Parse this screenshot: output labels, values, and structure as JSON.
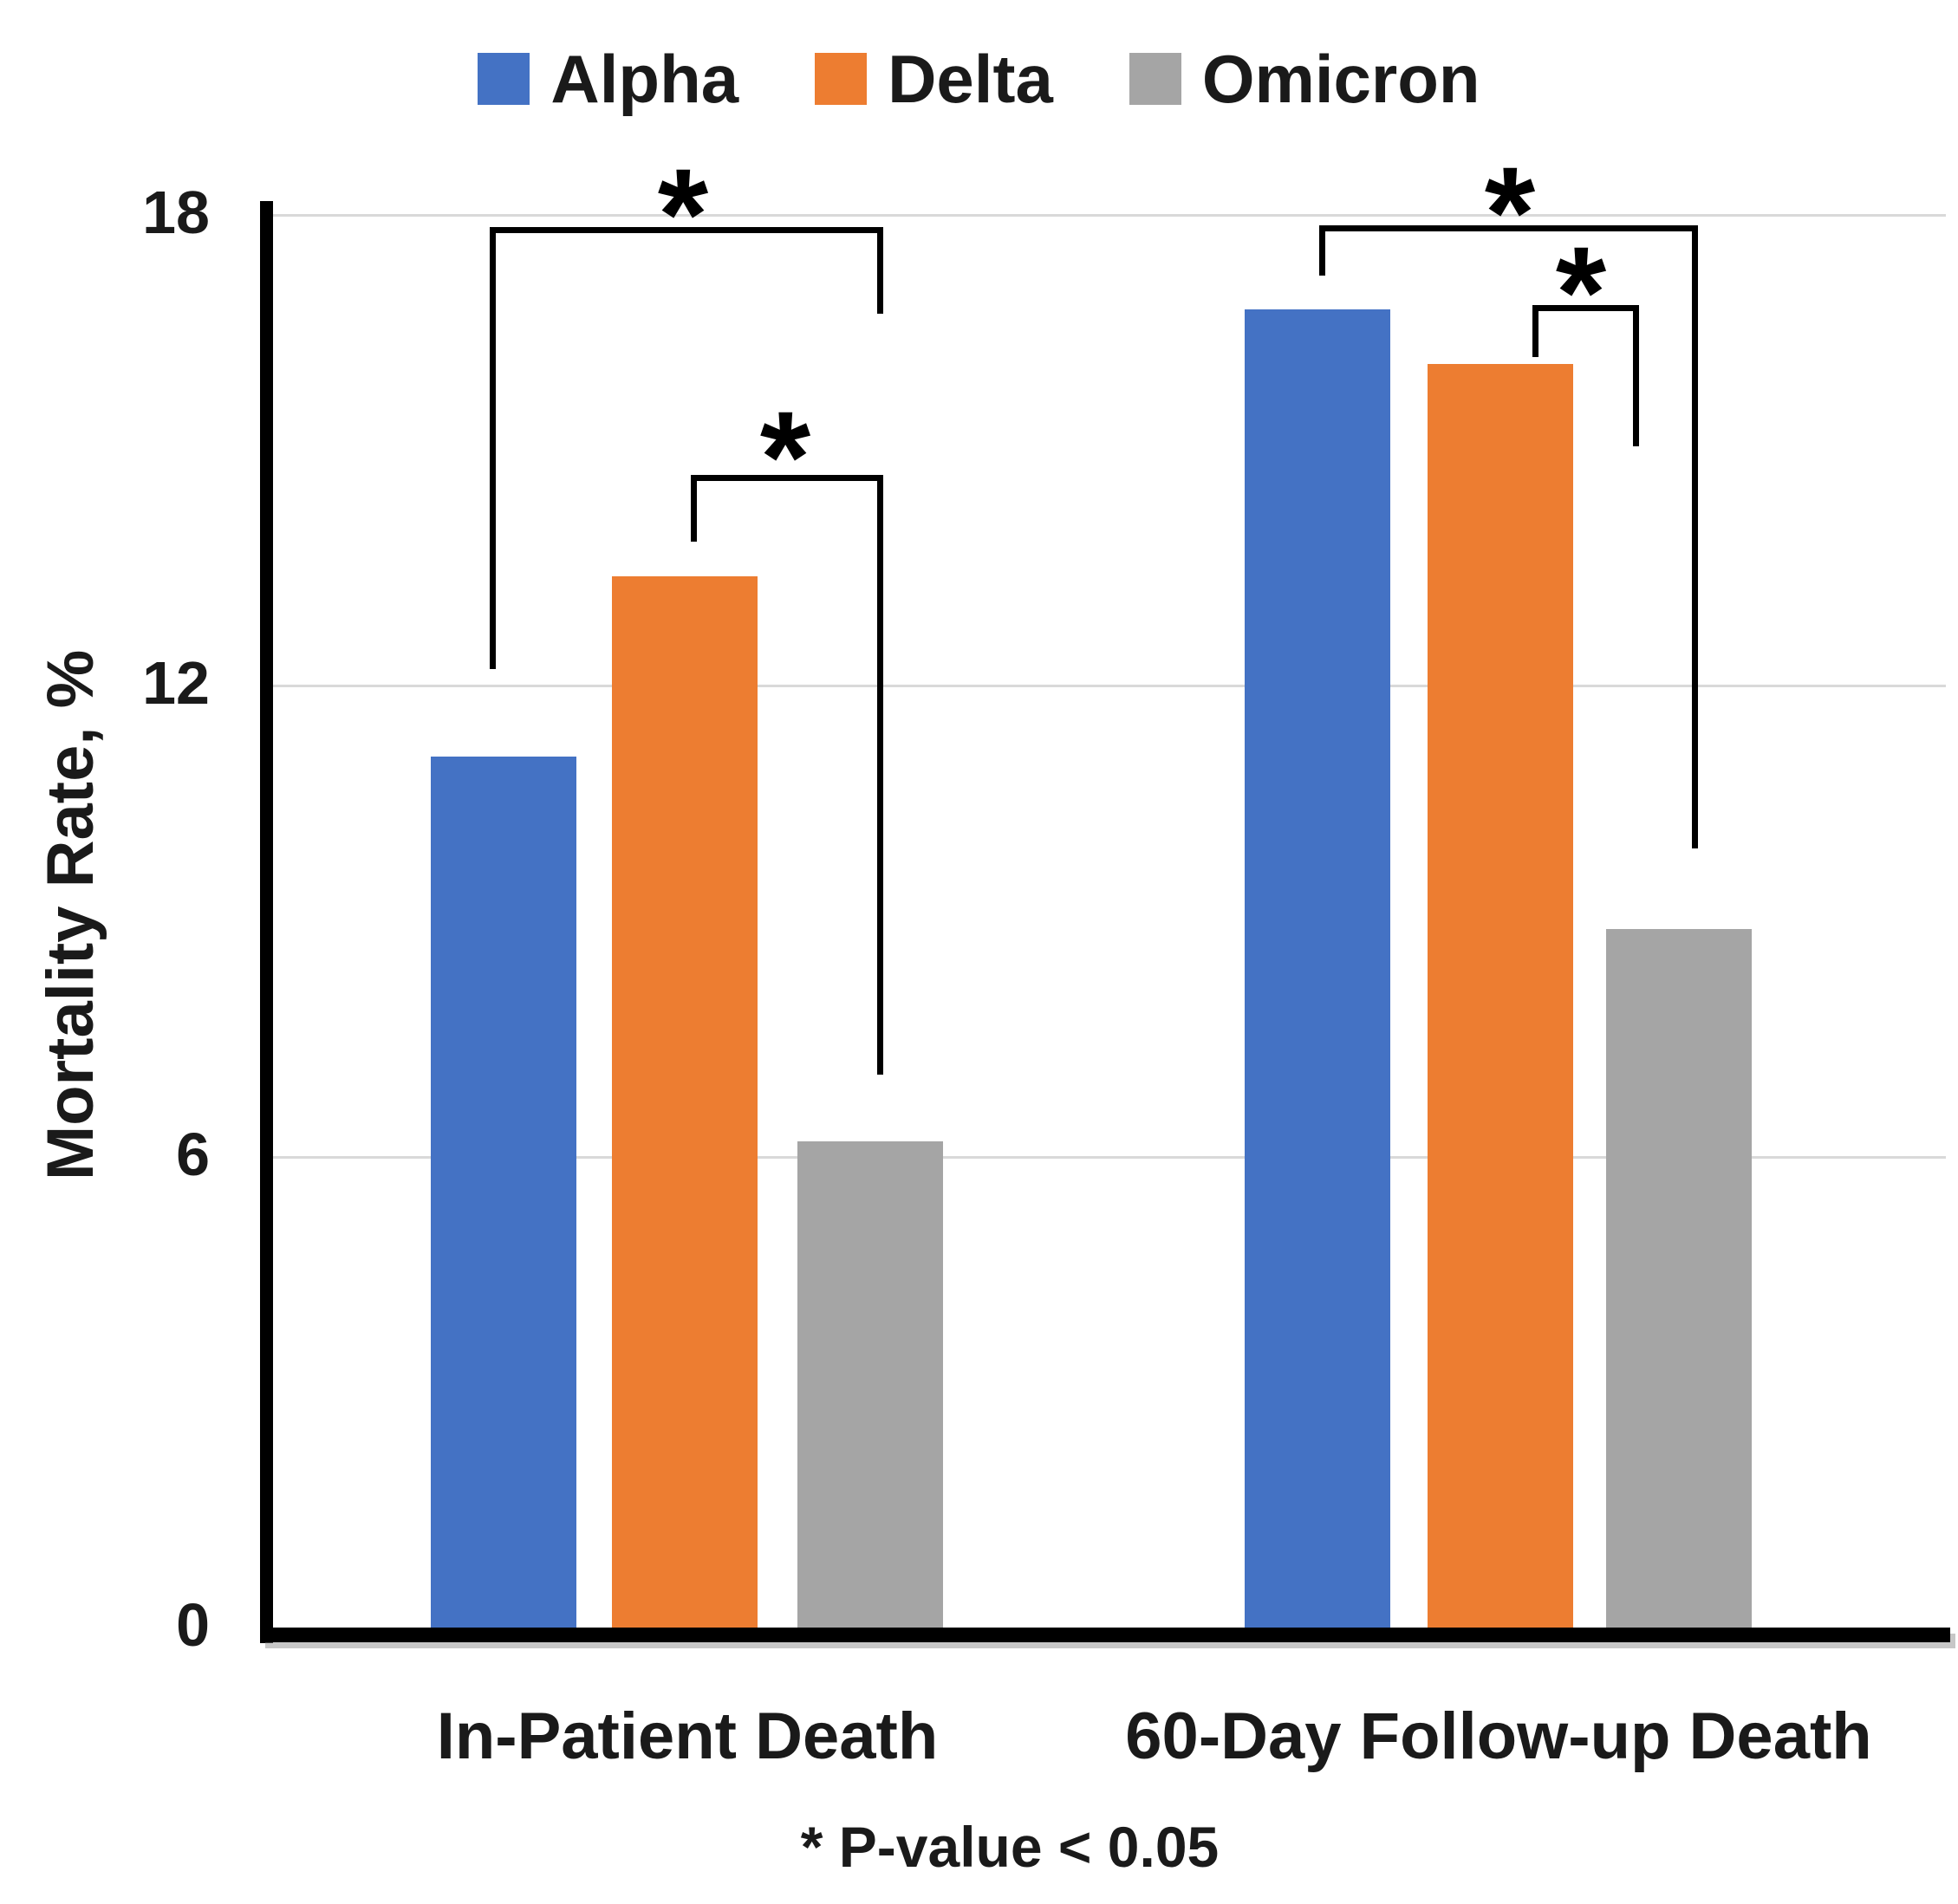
{
  "legend": {
    "items": [
      {
        "label": "Alpha",
        "color": "#4472c4"
      },
      {
        "label": "Delta",
        "color": "#ed7d31"
      },
      {
        "label": "Omicron",
        "color": "#a5a5a5"
      }
    ]
  },
  "y_axis": {
    "title": "Mortality Rate, %",
    "ticks": [
      0,
      6,
      12,
      18
    ]
  },
  "footnote": "* P-value < 0.05",
  "chart_data": {
    "type": "bar",
    "categories": [
      "In-Patient Death",
      "60-Day Follow-up Death"
    ],
    "series": [
      {
        "name": "Alpha",
        "color": "#4472c4",
        "values": [
          11.1,
          16.8
        ]
      },
      {
        "name": "Delta",
        "color": "#ed7d31",
        "values": [
          13.4,
          16.1
        ]
      },
      {
        "name": "Omicron",
        "color": "#a5a5a5",
        "values": [
          6.2,
          8.9
        ]
      }
    ],
    "title": "",
    "xlabel": "",
    "ylabel": "Mortality Rate, %",
    "ylim": [
      0,
      18
    ],
    "gridlines": [
      6,
      12,
      18
    ],
    "grid": true,
    "legend_position": "top",
    "significance": [
      {
        "category": "In-Patient Death",
        "between": [
          "Alpha",
          "Omicron"
        ],
        "label": "*",
        "note": "P-value < 0.05"
      },
      {
        "category": "In-Patient Death",
        "between": [
          "Delta",
          "Omicron"
        ],
        "label": "*",
        "note": "P-value < 0.05"
      },
      {
        "category": "60-Day Follow-up Death",
        "between": [
          "Alpha",
          "Omicron"
        ],
        "label": "*",
        "note": "P-value < 0.05"
      },
      {
        "category": "60-Day Follow-up Death",
        "between": [
          "Delta",
          "Omicron"
        ],
        "label": "*",
        "note": "P-value < 0.05"
      }
    ]
  }
}
